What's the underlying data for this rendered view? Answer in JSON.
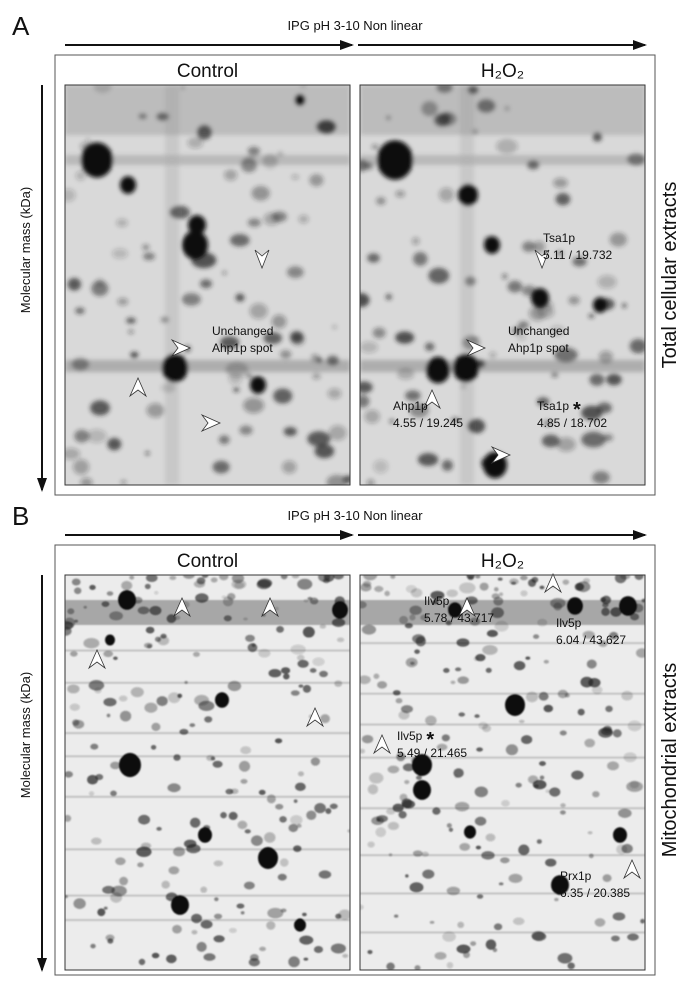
{
  "panels": [
    {
      "label": "A",
      "ph_axis": "IPG pH 3-10 Non linear",
      "y_axis": "Molecular mass  (kDa)",
      "side_label": "Total cellular extracts",
      "gels": [
        {
          "condition": "Control",
          "annotations": [
            {
              "lines": [
                "Unchanged",
                "Ahp1p spot"
              ]
            }
          ]
        },
        {
          "condition": "H₂O₂",
          "annotations": [
            {
              "lines": [
                "Tsa1p",
                "5.11 / 19.732"
              ]
            },
            {
              "lines": [
                "Unchanged",
                "Ahp1p spot"
              ]
            },
            {
              "lines": [
                "Ahp1p",
                "4.55 / 19.245"
              ]
            },
            {
              "lines": [
                "Tsa1p",
                "4.85 / 18.702"
              ],
              "mark": "*"
            }
          ]
        }
      ]
    },
    {
      "label": "B",
      "ph_axis": "IPG pH 3-10 Non linear",
      "y_axis": "Molecular mass  (kDa)",
      "side_label": "Mitochondrial extracts",
      "gels": [
        {
          "condition": "Control",
          "annotations": []
        },
        {
          "condition": "H₂O₂",
          "annotations": [
            {
              "lines": [
                "Ilv5p",
                "5.78 / 43.717"
              ]
            },
            {
              "lines": [
                "Ilv5p",
                "6.04 / 43.627"
              ]
            },
            {
              "lines": [
                "Ilv5p",
                "5.49 / 21.465"
              ],
              "mark": "*"
            },
            {
              "lines": [
                "Prx1p",
                "6.35 / 20.385"
              ]
            }
          ]
        }
      ]
    }
  ]
}
